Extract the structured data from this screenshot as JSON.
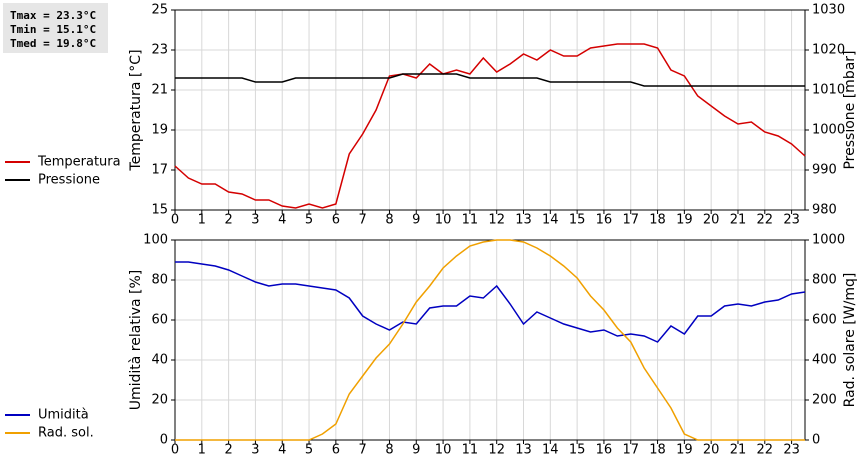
{
  "chart_data": [
    {
      "type": "line",
      "annotations": [
        "Tmax = 23.3°C",
        "Tmin = 15.1°C",
        "Tmed = 19.8°C"
      ],
      "ylabel": "Temperatura [°C]",
      "y2label": "Pressione [mbar]",
      "x": [
        0,
        0.5,
        1,
        1.5,
        2,
        2.5,
        3,
        3.5,
        4,
        4.5,
        5,
        5.5,
        6,
        6.5,
        7,
        7.5,
        8,
        8.5,
        9,
        9.5,
        10,
        10.5,
        11,
        11.5,
        12,
        12.5,
        13,
        13.5,
        14,
        14.5,
        15,
        15.5,
        16,
        16.5,
        17,
        17.5,
        18,
        18.5,
        19,
        19.5,
        20,
        20.5,
        21,
        21.5,
        22,
        22.5,
        23,
        23.5
      ],
      "xlim": [
        0,
        23.5
      ],
      "xticks": [
        0,
        1,
        2,
        3,
        4,
        5,
        6,
        7,
        8,
        9,
        10,
        11,
        12,
        13,
        14,
        15,
        16,
        17,
        18,
        19,
        20,
        21,
        22,
        23
      ],
      "ylim": [
        15,
        25
      ],
      "yticks": [
        15,
        17,
        19,
        21,
        23,
        25
      ],
      "y2lim": [
        980,
        1030
      ],
      "y2ticks": [
        980,
        990,
        1000,
        1010,
        1020,
        1030
      ],
      "grid": true,
      "legend": "left",
      "series": [
        {
          "name": "Temperatura",
          "color": "#d40000",
          "values": [
            17.2,
            16.6,
            16.3,
            16.3,
            15.9,
            15.8,
            15.5,
            15.5,
            15.2,
            15.1,
            15.3,
            15.1,
            15.3,
            17.8,
            18.8,
            20.0,
            21.7,
            21.8,
            21.6,
            22.3,
            21.8,
            22.0,
            21.8,
            22.6,
            21.9,
            22.3,
            22.8,
            22.5,
            23.0,
            22.7,
            22.7,
            23.1,
            23.2,
            23.3,
            23.3,
            23.3,
            23.1,
            22.0,
            21.7,
            20.7,
            20.2,
            19.7,
            19.3,
            19.4,
            18.9,
            18.7,
            18.3,
            17.7
          ]
        },
        {
          "name": "Pressione",
          "color": "#000000",
          "axis": "y2",
          "values": [
            1013,
            1013,
            1013,
            1013,
            1013,
            1013,
            1012,
            1012,
            1012,
            1013,
            1013,
            1013,
            1013,
            1013,
            1013,
            1013,
            1013,
            1014,
            1014,
            1014,
            1014,
            1014,
            1013,
            1013,
            1013,
            1013,
            1013,
            1013,
            1012,
            1012,
            1012,
            1012,
            1012,
            1012,
            1012,
            1011,
            1011,
            1011,
            1011,
            1011,
            1011,
            1011,
            1011,
            1011,
            1011,
            1011,
            1011,
            1011
          ]
        }
      ]
    },
    {
      "type": "line",
      "ylabel": "Umidità relativa [%]",
      "y2label": "Rad. solare [W/mq]",
      "x": [
        0,
        0.5,
        1,
        1.5,
        2,
        2.5,
        3,
        3.5,
        4,
        4.5,
        5,
        5.5,
        6,
        6.5,
        7,
        7.5,
        8,
        8.5,
        9,
        9.5,
        10,
        10.5,
        11,
        11.5,
        12,
        12.5,
        13,
        13.5,
        14,
        14.5,
        15,
        15.5,
        16,
        16.5,
        17,
        17.5,
        18,
        18.5,
        19,
        19.5,
        20,
        20.5,
        21,
        21.5,
        22,
        22.5,
        23,
        23.5
      ],
      "xlim": [
        0,
        23.5
      ],
      "xticks": [
        0,
        1,
        2,
        3,
        4,
        5,
        6,
        7,
        8,
        9,
        10,
        11,
        12,
        13,
        14,
        15,
        16,
        17,
        18,
        19,
        20,
        21,
        22,
        23
      ],
      "ylim": [
        0,
        100
      ],
      "yticks": [
        0,
        20,
        40,
        60,
        80,
        100
      ],
      "y2lim": [
        0,
        1000
      ],
      "y2ticks": [
        0,
        200,
        400,
        600,
        800,
        1000
      ],
      "grid": true,
      "legend": "left",
      "series": [
        {
          "name": "Umidità",
          "color": "#0000c0",
          "values": [
            89,
            89,
            88,
            87,
            85,
            82,
            79,
            77,
            78,
            78,
            77,
            76,
            75,
            71,
            62,
            58,
            55,
            59,
            58,
            66,
            67,
            67,
            72,
            71,
            77,
            68,
            58,
            64,
            61,
            58,
            56,
            54,
            55,
            52,
            53,
            52,
            49,
            57,
            53,
            62,
            62,
            67,
            68,
            67,
            69,
            70,
            73,
            74
          ]
        },
        {
          "name": "Rad. sol.",
          "color": "#f0a000",
          "axis": "y2",
          "values": [
            0,
            0,
            0,
            0,
            0,
            0,
            0,
            0,
            0,
            0,
            0,
            30,
            80,
            230,
            320,
            410,
            480,
            580,
            690,
            770,
            860,
            920,
            970,
            990,
            1000,
            1000,
            990,
            960,
            920,
            870,
            810,
            720,
            650,
            560,
            490,
            360,
            260,
            160,
            30,
            0,
            0,
            0,
            0,
            0,
            0,
            0,
            0,
            0
          ]
        }
      ]
    }
  ]
}
